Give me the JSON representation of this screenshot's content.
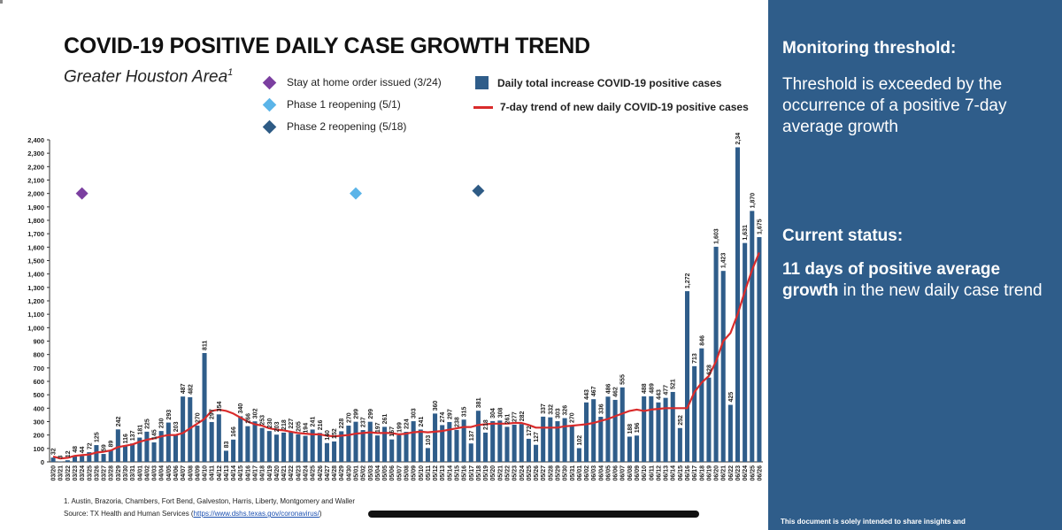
{
  "title": "COVID-19 POSITIVE DAILY CASE GROWTH TREND",
  "subtitle": "Greater Houston Area",
  "subtitle_sup": "1",
  "legend": {
    "stay_home": "Stay at home order issued (3/24)",
    "phase1": "Phase 1 reopening (5/1)",
    "phase2": "Phase 2 reopening (5/18)",
    "bars": "Daily total increase COVID-19 positive cases",
    "trend": "7-day trend of new daily COVID-19 positive cases"
  },
  "colors": {
    "bar": "#2f5d8a",
    "trend": "#d92b2b",
    "stay_home": "#7b3fa0",
    "phase1": "#5bb4e8",
    "phase2": "#2e5b85",
    "panel": "#2f5d8a"
  },
  "footnote1": "1. Austin, Brazoria, Chambers, Fort Bend, Galveston, Harris, Liberty, Montgomery and Waller",
  "source_prefix": "Source: TX Health and Human Services (",
  "source_link": "https://www.dshs.texas.gov/coronavirus/",
  "source_suffix": ")",
  "panel": {
    "h1": "Monitoring threshold:",
    "p1": "Threshold is exceeded by the occurrence of a positive 7-day average growth",
    "h2": "Current status:",
    "p2_bold": "11 days of positive average growth",
    "p2_rest": " in the new daily case trend",
    "small": "This document is solely intended to share insights and"
  },
  "chart_data": {
    "type": "bar",
    "title": "COVID-19 POSITIVE DAILY CASE GROWTH TREND",
    "ylim": [
      0,
      2400
    ],
    "yticks": [
      0,
      100,
      200,
      300,
      400,
      500,
      600,
      700,
      800,
      900,
      1000,
      1100,
      1200,
      1300,
      1400,
      1500,
      1600,
      1700,
      1800,
      1900,
      2000,
      2100,
      2200,
      2300,
      2400
    ],
    "categories": [
      "03/20",
      "03/21",
      "03/22",
      "03/23",
      "03/24",
      "03/25",
      "03/26",
      "03/27",
      "03/28",
      "03/29",
      "03/30",
      "03/31",
      "04/01",
      "04/02",
      "04/03",
      "04/04",
      "04/05",
      "04/06",
      "04/07",
      "04/08",
      "04/09",
      "04/10",
      "04/11",
      "04/12",
      "04/13",
      "04/14",
      "04/15",
      "04/16",
      "04/17",
      "04/18",
      "04/19",
      "04/20",
      "04/21",
      "04/22",
      "04/23",
      "04/24",
      "04/25",
      "04/26",
      "04/27",
      "04/28",
      "04/29",
      "04/30",
      "05/01",
      "05/02",
      "05/03",
      "05/04",
      "05/05",
      "05/06",
      "05/07",
      "05/08",
      "05/09",
      "05/10",
      "05/11",
      "05/12",
      "05/13",
      "05/14",
      "05/15",
      "05/16",
      "05/17",
      "05/18",
      "05/19",
      "05/20",
      "05/21",
      "05/22",
      "05/23",
      "05/24",
      "05/25",
      "05/26",
      "05/27",
      "05/28",
      "05/29",
      "05/30",
      "05/31",
      "06/01",
      "06/02",
      "06/03",
      "06/04",
      "06/05",
      "06/06",
      "06/07",
      "06/08",
      "06/09",
      "06/10",
      "06/11",
      "06/12",
      "06/13",
      "06/14",
      "06/15",
      "06/16",
      "06/17",
      "06/18",
      "06/19",
      "06/20",
      "06/21",
      "06/22",
      "06/23",
      "06/24",
      "06/25",
      "06/26"
    ],
    "values": [
      32,
      3,
      12,
      48,
      44,
      72,
      125,
      59,
      89,
      242,
      116,
      137,
      181,
      225,
      145,
      230,
      293,
      203,
      487,
      482,
      270,
      811,
      297,
      354,
      83,
      166,
      340,
      266,
      302,
      253,
      230,
      203,
      218,
      227,
      205,
      194,
      241,
      216,
      140,
      152,
      228,
      270,
      299,
      237,
      299,
      197,
      261,
      167,
      199,
      224,
      303,
      241,
      103,
      360,
      274,
      297,
      238,
      315,
      137,
      381,
      218,
      304,
      308,
      261,
      277,
      282,
      172,
      127,
      337,
      332,
      303,
      326,
      270,
      102,
      443,
      467,
      336,
      486,
      462,
      555,
      188,
      196,
      488,
      489,
      443,
      477,
      521,
      252,
      1272,
      713,
      846,
      628,
      1603,
      1423,
      425,
      2344,
      1631,
      1870,
      1675
    ],
    "series": [
      {
        "name": "Daily total increase COVID-19 positive cases",
        "type": "bar"
      },
      {
        "name": "7-day trend of new daily COVID-19 positive cases",
        "type": "line",
        "values": [
          40,
          25,
          30,
          45,
          50,
          55,
          70,
          75,
          85,
          110,
          120,
          130,
          150,
          165,
          175,
          190,
          200,
          200,
          215,
          250,
          285,
          320,
          380,
          390,
          380,
          360,
          330,
          300,
          280,
          270,
          250,
          240,
          235,
          225,
          215,
          210,
          205,
          205,
          195,
          190,
          195,
          200,
          210,
          215,
          220,
          215,
          215,
          215,
          205,
          210,
          220,
          225,
          220,
          225,
          230,
          240,
          250,
          260,
          260,
          275,
          280,
          285,
          285,
          285,
          290,
          290,
          275,
          255,
          255,
          255,
          255,
          265,
          270,
          275,
          280,
          290,
          305,
          320,
          340,
          360,
          380,
          390,
          380,
          390,
          395,
          400,
          400,
          400,
          400,
          520,
          590,
          640,
          750,
          900,
          960,
          1100,
          1270,
          1430,
          1560
        ]
      },
      {
        "name": "Stay at home order issued (3/24)",
        "type": "marker",
        "category": "03/24",
        "y": 2000
      },
      {
        "name": "Phase 1 reopening (5/1)",
        "type": "marker",
        "category": "05/01",
        "y": 2000
      },
      {
        "name": "Phase 2 reopening (5/18)",
        "type": "marker",
        "category": "05/18",
        "y": 2020
      }
    ]
  }
}
